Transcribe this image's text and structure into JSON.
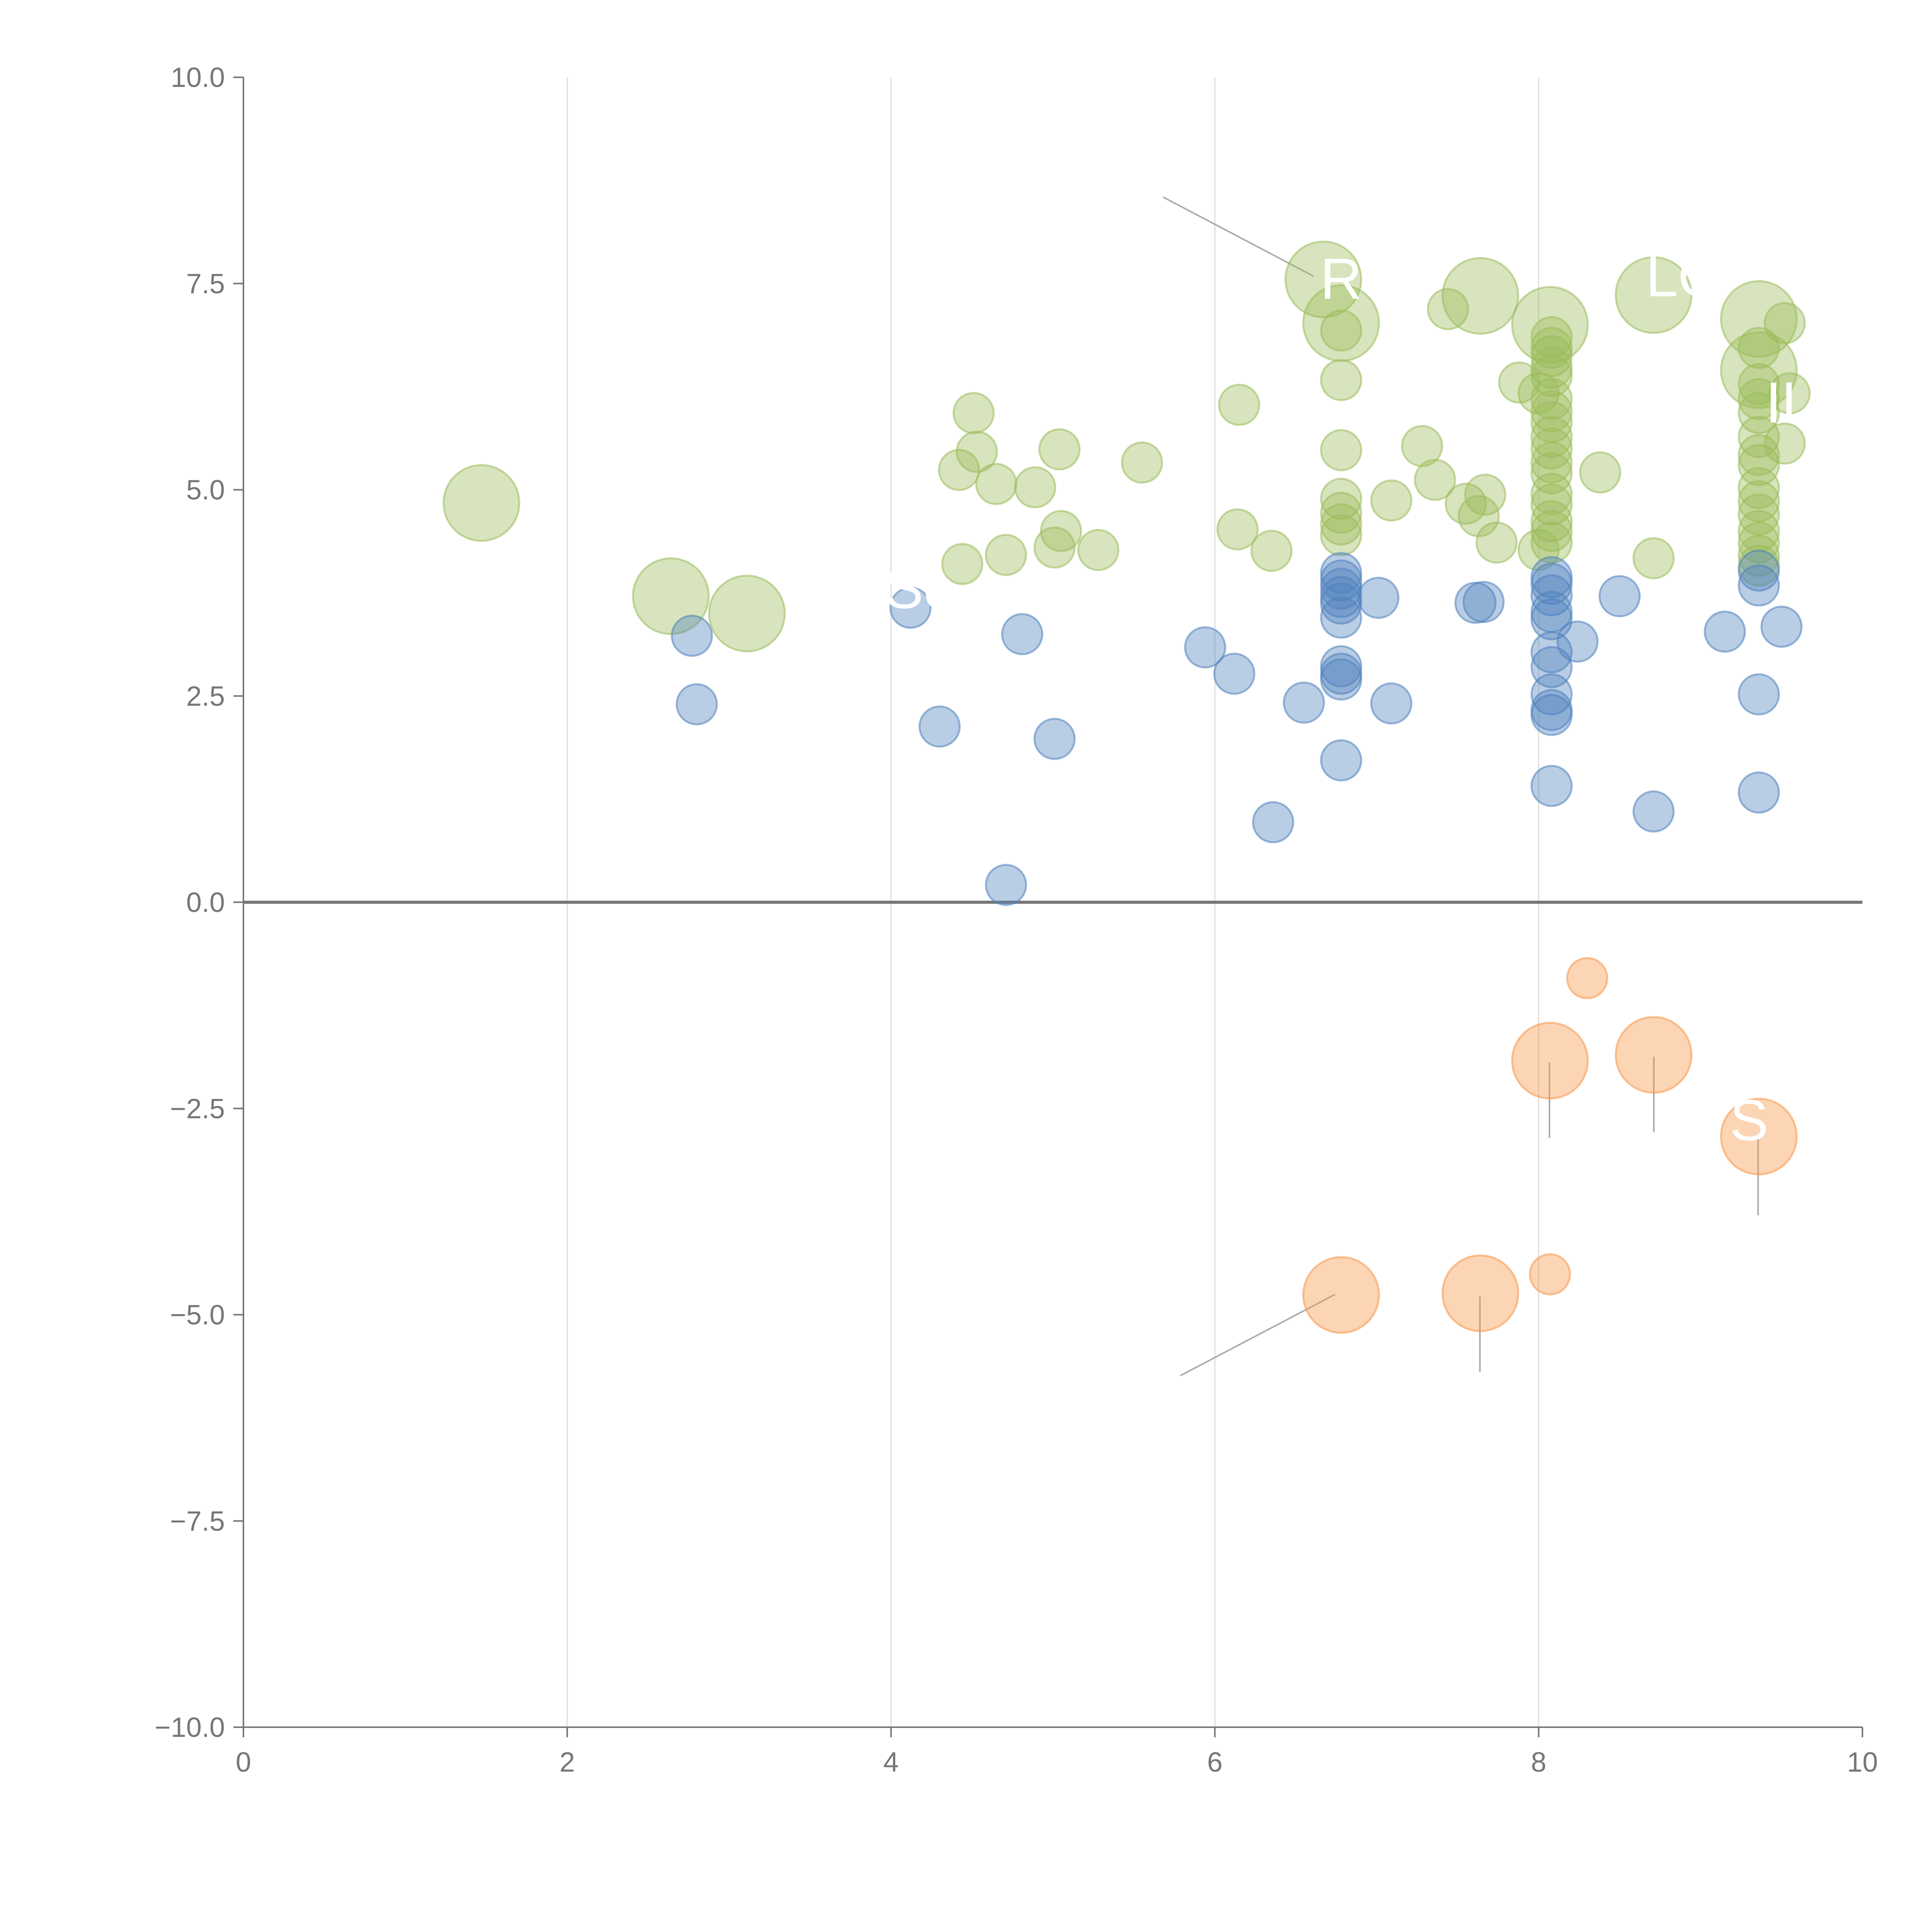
{
  "chart_data": {
    "type": "scatter",
    "title": "",
    "xlabel": "",
    "ylabel": "",
    "xlim": [
      0,
      10
    ],
    "ylim": [
      -10,
      10
    ],
    "x_ticks": [
      0,
      2,
      4,
      6,
      8,
      10
    ],
    "x_tick_labels": [
      "0",
      "2",
      "4",
      "6",
      "8",
      "10"
    ],
    "y_ticks": [
      10,
      7.5,
      5,
      2.5,
      0,
      -2.5,
      -5,
      -7.5,
      -10
    ],
    "y_tick_labels": [
      "10.0",
      "7.5",
      "5.0",
      "2.5",
      "0.0",
      "−2.5",
      "−5.0",
      "−7.5",
      "−10.0"
    ],
    "grid_x": true,
    "grid_y": false,
    "zero_line": true,
    "series": [
      {
        "name": "green",
        "color": "#9bbb59",
        "fill_opacity": 0.4,
        "points": [
          [
            6.67,
            7.55,
            2
          ],
          [
            6.78,
            7.02,
            2
          ],
          [
            7.64,
            7.35,
            2
          ],
          [
            8.07,
            7.0,
            2
          ],
          [
            8.71,
            7.36,
            2
          ],
          [
            9.36,
            7.07,
            2
          ],
          [
            9.36,
            6.45,
            2
          ],
          [
            1.47,
            4.84,
            2
          ],
          [
            2.64,
            3.71,
            2
          ],
          [
            3.11,
            3.5,
            2
          ],
          [
            6.78,
            6.93,
            1
          ],
          [
            6.78,
            6.33,
            1
          ],
          [
            6.78,
            5.48,
            1
          ],
          [
            6.78,
            4.89,
            1
          ],
          [
            6.78,
            4.72,
            1
          ],
          [
            6.78,
            4.58,
            1
          ],
          [
            6.78,
            4.45,
            1
          ],
          [
            4.51,
            5.93,
            1
          ],
          [
            4.53,
            5.46,
            1
          ],
          [
            4.42,
            5.24,
            1
          ],
          [
            4.65,
            5.07,
            1
          ],
          [
            4.89,
            5.03,
            1
          ],
          [
            5.04,
            5.49,
            1
          ],
          [
            5.55,
            5.33,
            1
          ],
          [
            4.44,
            4.1,
            1
          ],
          [
            4.71,
            4.21,
            1
          ],
          [
            5.05,
            4.5,
            1
          ],
          [
            5.01,
            4.3,
            1
          ],
          [
            5.28,
            4.27,
            1
          ],
          [
            6.15,
            6.03,
            1
          ],
          [
            6.14,
            4.52,
            1
          ],
          [
            6.35,
            4.26,
            1
          ],
          [
            7.09,
            4.87,
            1
          ],
          [
            7.28,
            5.53,
            1
          ],
          [
            7.36,
            5.12,
            1
          ],
          [
            7.44,
            7.19,
            1
          ],
          [
            7.55,
            4.83,
            1
          ],
          [
            7.67,
            4.94,
            1
          ],
          [
            7.63,
            4.68,
            1
          ],
          [
            7.74,
            4.36,
            1
          ],
          [
            7.88,
            6.3,
            1
          ],
          [
            8.0,
            6.17,
            1
          ],
          [
            8.08,
            6.1,
            1
          ],
          [
            8.08,
            6.85,
            1
          ],
          [
            8.08,
            6.72,
            1
          ],
          [
            8.08,
            6.62,
            1
          ],
          [
            8.08,
            6.48,
            1
          ],
          [
            8.08,
            6.38,
            1
          ],
          [
            8.08,
            5.95,
            1
          ],
          [
            8.08,
            5.82,
            1
          ],
          [
            8.08,
            5.64,
            1
          ],
          [
            8.08,
            5.5,
            1
          ],
          [
            8.08,
            5.33,
            1
          ],
          [
            8.08,
            5.2,
            1
          ],
          [
            8.08,
            4.95,
            1
          ],
          [
            8.08,
            4.82,
            1
          ],
          [
            8.08,
            4.62,
            1
          ],
          [
            8.08,
            4.5,
            1
          ],
          [
            8.08,
            4.36,
            1
          ],
          [
            8.0,
            4.27,
            1
          ],
          [
            8.38,
            5.21,
            1
          ],
          [
            8.71,
            4.17,
            1
          ],
          [
            9.36,
            6.72,
            1
          ],
          [
            9.36,
            6.28,
            1
          ],
          [
            9.36,
            6.1,
            1
          ],
          [
            9.36,
            5.93,
            1
          ],
          [
            9.36,
            5.64,
            1
          ],
          [
            9.36,
            5.42,
            1
          ],
          [
            9.36,
            5.3,
            1
          ],
          [
            9.36,
            5.02,
            1
          ],
          [
            9.36,
            4.86,
            1
          ],
          [
            9.36,
            4.7,
            1
          ],
          [
            9.36,
            4.5,
            1
          ],
          [
            9.36,
            4.36,
            1
          ],
          [
            9.36,
            4.2,
            1
          ],
          [
            9.36,
            4.08,
            1
          ],
          [
            9.52,
            7.02,
            1
          ],
          [
            9.55,
            6.17,
            1
          ],
          [
            9.52,
            5.56,
            1
          ]
        ]
      },
      {
        "name": "blue",
        "color": "#4f81bd",
        "fill_opacity": 0.4,
        "points": [
          [
            2.77,
            3.23,
            1
          ],
          [
            2.8,
            2.4,
            1
          ],
          [
            4.12,
            3.57,
            1
          ],
          [
            4.3,
            2.13,
            1
          ],
          [
            4.81,
            3.25,
            1
          ],
          [
            5.01,
            1.98,
            1
          ],
          [
            4.71,
            0.21,
            1
          ],
          [
            5.94,
            3.09,
            1
          ],
          [
            6.12,
            2.77,
            1
          ],
          [
            6.36,
            0.97,
            1
          ],
          [
            6.55,
            2.42,
            1
          ],
          [
            6.78,
            3.99,
            1
          ],
          [
            6.78,
            3.9,
            1
          ],
          [
            6.78,
            3.8,
            1
          ],
          [
            6.78,
            3.7,
            1
          ],
          [
            6.78,
            3.62,
            1
          ],
          [
            6.78,
            3.45,
            1
          ],
          [
            6.78,
            2.86,
            1
          ],
          [
            6.78,
            2.77,
            1
          ],
          [
            6.78,
            2.7,
            1
          ],
          [
            6.78,
            1.72,
            1
          ],
          [
            7.01,
            3.69,
            1
          ],
          [
            7.09,
            2.41,
            1
          ],
          [
            7.61,
            3.63,
            1
          ],
          [
            7.66,
            3.64,
            1
          ],
          [
            8.08,
            3.94,
            1
          ],
          [
            8.08,
            3.86,
            1
          ],
          [
            8.08,
            3.72,
            1
          ],
          [
            8.08,
            3.52,
            1
          ],
          [
            8.08,
            3.43,
            1
          ],
          [
            8.08,
            3.03,
            1
          ],
          [
            8.08,
            2.85,
            1
          ],
          [
            8.08,
            2.52,
            1
          ],
          [
            8.08,
            2.33,
            1
          ],
          [
            8.08,
            2.27,
            1
          ],
          [
            8.08,
            1.41,
            1
          ],
          [
            8.24,
            3.16,
            1
          ],
          [
            8.5,
            3.71,
            1
          ],
          [
            8.71,
            1.1,
            1
          ],
          [
            9.15,
            3.28,
            1
          ],
          [
            9.36,
            4.02,
            1
          ],
          [
            9.36,
            3.84,
            1
          ],
          [
            9.36,
            2.52,
            1
          ],
          [
            9.36,
            1.33,
            1
          ],
          [
            9.5,
            3.34,
            1
          ]
        ]
      },
      {
        "name": "orange",
        "color": "#f79646",
        "fill_opacity": 0.4,
        "points": [
          [
            8.3,
            -0.92,
            1
          ],
          [
            8.07,
            -1.92,
            2
          ],
          [
            8.71,
            -1.85,
            2
          ],
          [
            9.36,
            -2.84,
            2
          ],
          [
            6.78,
            -4.76,
            2
          ],
          [
            7.64,
            -4.74,
            2
          ],
          [
            8.07,
            -4.51,
            1
          ]
        ]
      }
    ],
    "annotations": [
      {
        "text": "R",
        "x": 6.78,
        "y": 7.55
      },
      {
        "text": "LQ",
        "x": 8.9,
        "y": 7.58
      },
      {
        "text": "IL",
        "x": 9.55,
        "y": 6.05
      },
      {
        "text": "So",
        "x": 4.18,
        "y": 3.8
      },
      {
        "text": "S",
        "x": 9.3,
        "y": -2.65
      }
    ]
  }
}
